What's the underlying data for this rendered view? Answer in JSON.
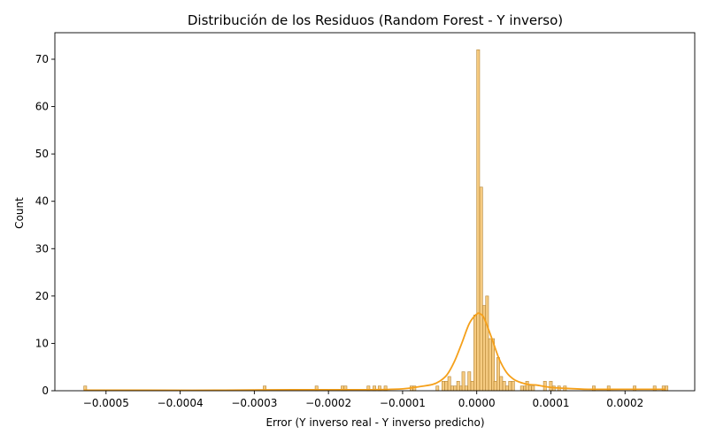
{
  "chart_data": {
    "type": "bar",
    "title": "Distribución de los Residuos (Random Forest - Y inverso)",
    "xlabel": "Error (Y inverso real - Y inverso predicho)",
    "ylabel": "Count",
    "xlim": [
      -0.000569,
      0.000294
    ],
    "ylim": [
      0,
      75.6
    ],
    "xticks": [
      -0.0005,
      -0.0004,
      -0.0003,
      -0.0002,
      -0.0001,
      0.0,
      0.0001,
      0.0002
    ],
    "xtick_labels": [
      "−0.0005",
      "−0.0004",
      "−0.0003",
      "−0.0002",
      "−0.0001",
      "0.0000",
      "0.0001",
      "0.0002"
    ],
    "yticks": [
      0,
      10,
      20,
      30,
      40,
      50,
      60,
      70
    ],
    "ytick_labels": [
      "0",
      "10",
      "20",
      "30",
      "40",
      "50",
      "60",
      "70"
    ],
    "bin_width": 3.9e-06,
    "bins": [
      {
        "x": -0.00053,
        "count": 1
      },
      {
        "x": -0.000288,
        "count": 1
      },
      {
        "x": -0.000218,
        "count": 1
      },
      {
        "x": -0.000183,
        "count": 1
      },
      {
        "x": -0.000179,
        "count": 1
      },
      {
        "x": -0.000148,
        "count": 1
      },
      {
        "x": -0.00014,
        "count": 1
      },
      {
        "x": -0.000133,
        "count": 1
      },
      {
        "x": -0.000125,
        "count": 1
      },
      {
        "x": -9e-05,
        "count": 1
      },
      {
        "x": -8.6e-05,
        "count": 1
      },
      {
        "x": -5.5e-05,
        "count": 1
      },
      {
        "x": -4.7e-05,
        "count": 2
      },
      {
        "x": -4.3e-05,
        "count": 2
      },
      {
        "x": -3.9e-05,
        "count": 3
      },
      {
        "x": -3.5e-05,
        "count": 1
      },
      {
        "x": -3.1e-05,
        "count": 1
      },
      {
        "x": -2.7e-05,
        "count": 2
      },
      {
        "x": -2.3e-05,
        "count": 1
      },
      {
        "x": -2e-05,
        "count": 4
      },
      {
        "x": -1.6e-05,
        "count": 1
      },
      {
        "x": -1.2e-05,
        "count": 4
      },
      {
        "x": -8e-06,
        "count": 2
      },
      {
        "x": -4e-06,
        "count": 16
      },
      {
        "x": 0.0,
        "count": 72
      },
      {
        "x": 4e-06,
        "count": 43
      },
      {
        "x": 8e-06,
        "count": 18
      },
      {
        "x": 1.2e-05,
        "count": 20
      },
      {
        "x": 1.6e-05,
        "count": 11
      },
      {
        "x": 2e-05,
        "count": 11
      },
      {
        "x": 2.3e-05,
        "count": 2
      },
      {
        "x": 2.7e-05,
        "count": 7
      },
      {
        "x": 3.1e-05,
        "count": 3
      },
      {
        "x": 3.5e-05,
        "count": 2
      },
      {
        "x": 3.9e-05,
        "count": 1
      },
      {
        "x": 4.3e-05,
        "count": 2
      },
      {
        "x": 4.7e-05,
        "count": 2
      },
      {
        "x": 5.9e-05,
        "count": 1
      },
      {
        "x": 6.3e-05,
        "count": 1
      },
      {
        "x": 6.6e-05,
        "count": 2
      },
      {
        "x": 7e-05,
        "count": 1
      },
      {
        "x": 7.4e-05,
        "count": 1
      },
      {
        "x": 9e-05,
        "count": 2
      },
      {
        "x": 9.8e-05,
        "count": 2
      },
      {
        "x": 0.000102,
        "count": 1
      },
      {
        "x": 0.000109,
        "count": 1
      },
      {
        "x": 0.000117,
        "count": 1
      },
      {
        "x": 0.000156,
        "count": 1
      },
      {
        "x": 0.000176,
        "count": 1
      },
      {
        "x": 0.000211,
        "count": 1
      },
      {
        "x": 0.000238,
        "count": 1
      },
      {
        "x": 0.00025,
        "count": 1
      },
      {
        "x": 0.000254,
        "count": 1
      }
    ],
    "kde": {
      "x": [
        -0.00053,
        -0.00045,
        -0.00035,
        -0.00025,
        -0.00015,
        -0.0001,
        -8e-05,
        -6e-05,
        -5e-05,
        -4e-05,
        -3e-05,
        -2e-05,
        -1e-05,
        0.0,
        5e-06,
        1e-05,
        2e-05,
        3e-05,
        4e-05,
        5e-05,
        6e-05,
        7e-05,
        8e-05,
        0.0001,
        0.00012,
        0.00015,
        0.0002,
        0.000255
      ],
      "y": [
        0.1,
        0.1,
        0.1,
        0.2,
        0.2,
        0.4,
        0.8,
        1.3,
        2.0,
        3.4,
        6.2,
        10.1,
        14.2,
        16.2,
        16.2,
        15.3,
        11.2,
        6.8,
        3.9,
        2.4,
        1.7,
        1.3,
        1.2,
        0.7,
        0.5,
        0.3,
        0.3,
        0.3
      ],
      "color": "#f5a01a"
    },
    "bar_color": "#f5c26b",
    "grid": false,
    "legend": "none"
  }
}
